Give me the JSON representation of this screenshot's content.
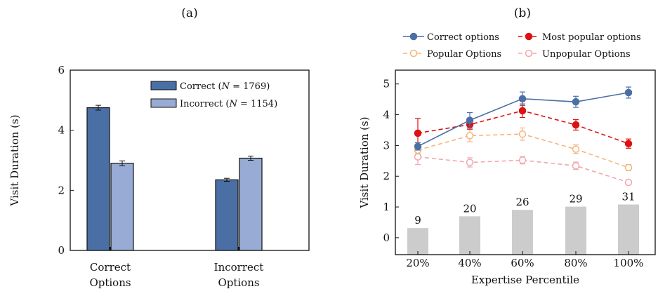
{
  "chart_data": [
    {
      "panel_label": "(a)",
      "type": "bar",
      "categories": [
        [
          "Correct",
          "Options"
        ],
        [
          "Incorrect",
          "Options"
        ]
      ],
      "series": [
        {
          "name": "Correct (N = 1769)",
          "values": [
            4.75,
            2.35
          ],
          "errors": [
            0.08,
            0.05
          ],
          "color": "#4a6fa5"
        },
        {
          "name": "Incorrect (N = 1154)",
          "values": [
            2.9,
            3.07
          ],
          "errors": [
            0.08,
            0.07
          ],
          "color": "#98abd4"
        }
      ],
      "xlabel": "",
      "ylabel": "Visit Duration (s)",
      "ylim": [
        0,
        6
      ],
      "yticks": [
        0,
        2,
        4,
        6
      ],
      "legend": "top-right",
      "grid": false
    },
    {
      "panel_label": "(b)",
      "type": "line",
      "x": [
        "20%",
        "40%",
        "60%",
        "80%",
        "100%"
      ],
      "series": [
        {
          "name": "Correct options",
          "values": [
            2.97,
            3.82,
            4.52,
            4.42,
            4.72
          ],
          "errors": [
            0.12,
            0.25,
            0.22,
            0.18,
            0.18
          ],
          "color": "#4a6fa5",
          "style": "solid",
          "marker": "filled"
        },
        {
          "name": "Most popular options",
          "values": [
            3.4,
            3.68,
            4.13,
            3.67,
            3.06
          ],
          "errors": [
            0.48,
            0.15,
            0.22,
            0.17,
            0.15
          ],
          "color": "#dd1111",
          "style": "dashed",
          "marker": "filled"
        },
        {
          "name": "Popular Options",
          "values": [
            2.85,
            3.32,
            3.37,
            2.88,
            2.28
          ],
          "errors": [
            0.12,
            0.2,
            0.2,
            0.14,
            0.1
          ],
          "color": "#f5b57a",
          "style": "dashed",
          "marker": "open"
        },
        {
          "name": "Unpopular Options",
          "values": [
            2.63,
            2.45,
            2.52,
            2.34,
            1.8
          ],
          "errors": [
            0.25,
            0.15,
            0.12,
            0.12,
            0.08
          ],
          "color": "#f2a7ae",
          "style": "dashed",
          "marker": "open"
        }
      ],
      "counts": {
        "values": [
          9,
          20,
          26,
          29,
          31
        ],
        "color": "#cccccc"
      },
      "xlabel": "Expertise Percentile",
      "ylabel": "Visit Duration (s)",
      "ylim": [
        -0.55,
        5.45
      ],
      "yticks": [
        0,
        1,
        2,
        3,
        4,
        5
      ],
      "legend": "top",
      "grid": false
    }
  ]
}
